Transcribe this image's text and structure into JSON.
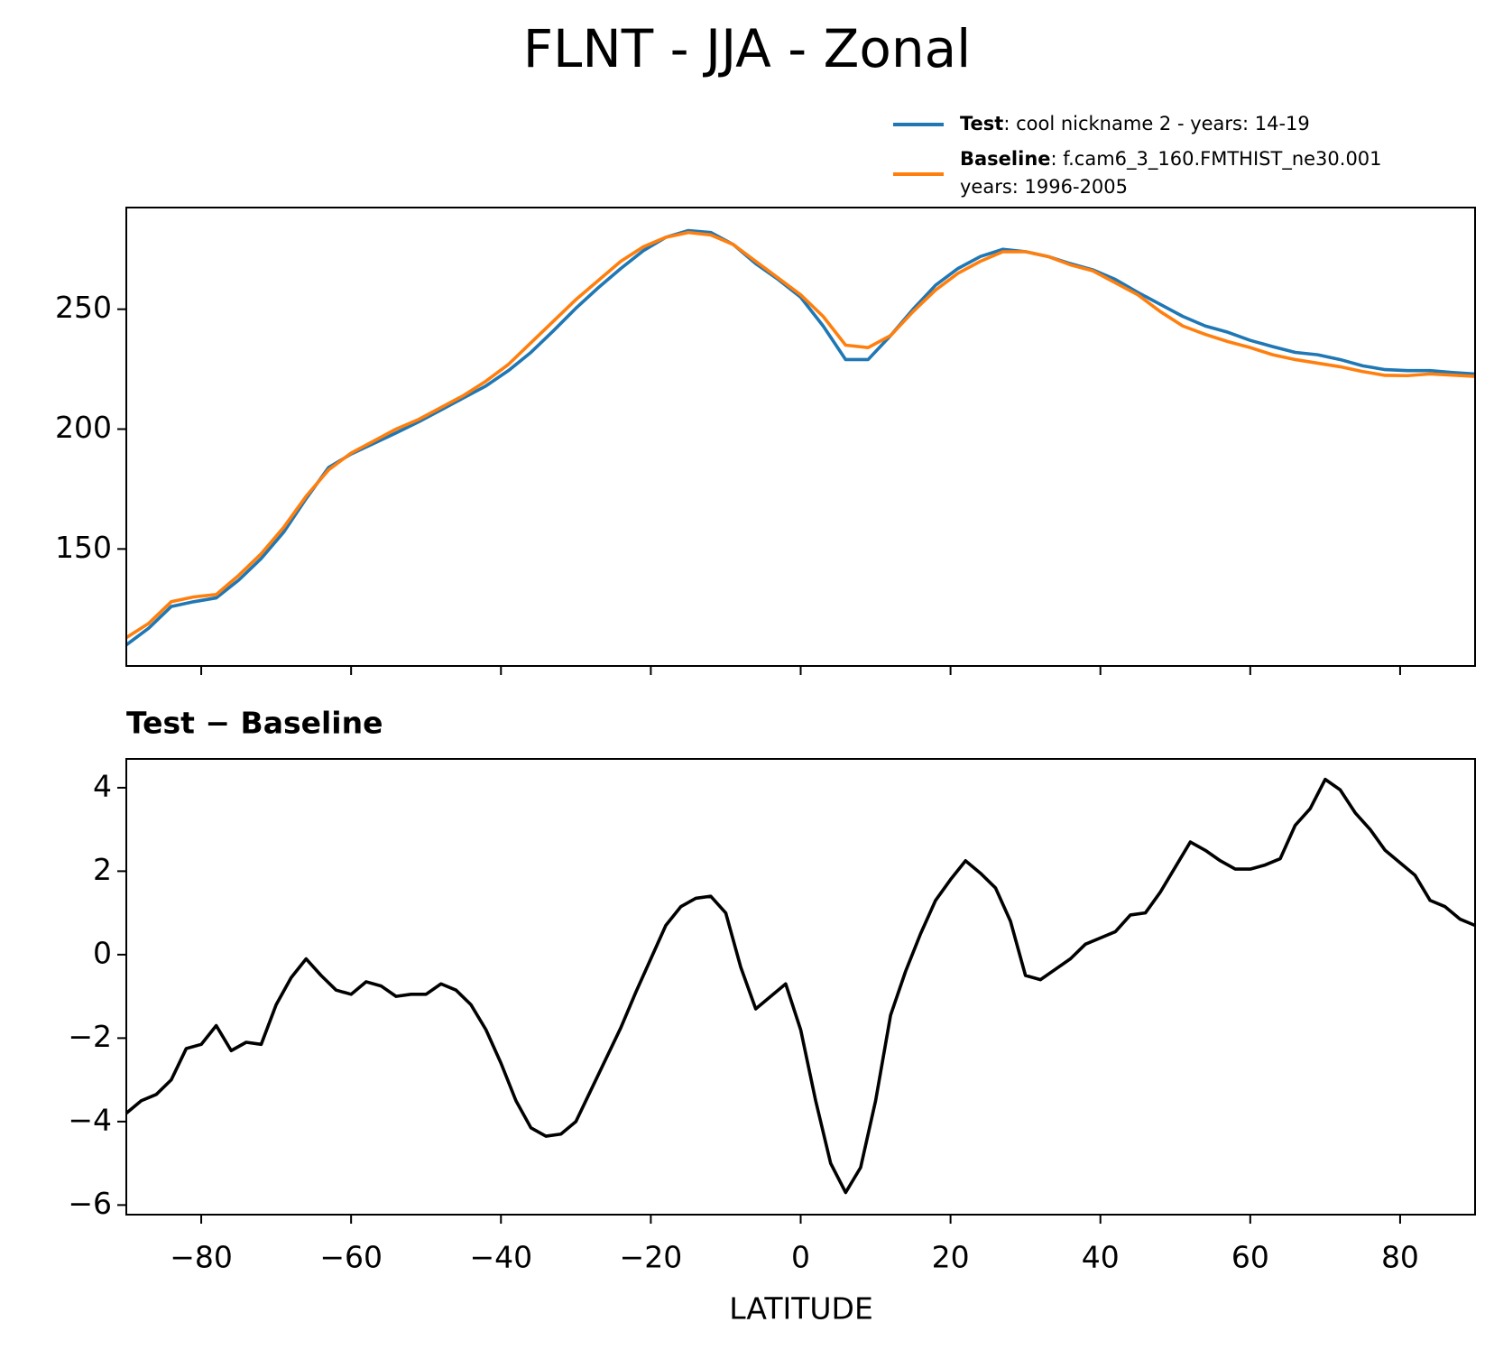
{
  "chart_data": [
    {
      "type": "line",
      "title": "FLNT - JJA - Zonal",
      "x": [
        -90,
        -87,
        -84,
        -81,
        -78,
        -75,
        -72,
        -69,
        -66,
        -63,
        -60,
        -57,
        -54,
        -51,
        -48,
        -45,
        -42,
        -39,
        -36,
        -33,
        -30,
        -27,
        -24,
        -21,
        -18,
        -15,
        -12,
        -9,
        -6,
        -3,
        0,
        3,
        6,
        9,
        12,
        15,
        18,
        21,
        24,
        27,
        30,
        33,
        36,
        39,
        42,
        45,
        48,
        51,
        54,
        57,
        60,
        63,
        66,
        69,
        72,
        75,
        78,
        81,
        84,
        87,
        90
      ],
      "series": [
        {
          "name": "Test",
          "description": ": cool nickname 2 - years: 14-19",
          "color": "#1f77b4",
          "values": [
            110,
            117,
            126,
            128,
            129.6,
            137,
            146,
            157,
            171,
            184,
            189.6,
            194,
            198.4,
            203,
            208,
            213,
            218,
            224.4,
            232,
            241,
            250.4,
            259,
            267,
            274.4,
            280,
            282.8,
            282,
            277,
            269,
            262.4,
            255,
            243,
            229,
            229,
            239,
            250,
            260,
            267,
            272,
            275,
            274,
            272,
            269,
            266.4,
            262.4,
            257,
            252,
            247,
            243,
            240.4,
            237,
            234.4,
            232,
            231,
            229,
            226.4,
            224.8,
            224.4,
            224.4,
            223.6,
            223
          ]
        },
        {
          "name": "Baseline",
          "description": ": f.cam6_3_160.FMTHIST_ne30.001",
          "description_line2": "years: 1996-2005",
          "color": "#ff7f0e",
          "values": [
            113,
            119,
            128,
            130,
            131,
            139,
            148,
            159,
            172,
            183,
            190,
            195,
            200,
            204,
            209,
            214,
            220,
            227,
            236,
            245,
            254,
            262,
            270,
            276,
            280,
            282,
            281,
            277,
            270,
            263,
            256,
            247,
            235,
            234,
            239,
            249,
            258,
            265,
            270,
            274,
            274,
            272,
            268.5,
            266,
            261,
            256,
            249,
            243,
            239.5,
            236.5,
            234,
            231,
            229,
            227.5,
            226,
            224,
            222.4,
            222.3,
            223,
            222.5,
            222
          ]
        }
      ],
      "xlim": [
        -90,
        90
      ],
      "ylim": [
        101.2,
        292.4
      ],
      "yticks": [
        150,
        200,
        250
      ]
    },
    {
      "type": "line",
      "title": "Test − Baseline",
      "xlabel": "LATITUDE",
      "x": [
        -90,
        -88,
        -86,
        -84,
        -82,
        -80,
        -78,
        -76,
        -74,
        -72,
        -70,
        -68,
        -66,
        -64,
        -62,
        -60,
        -58,
        -56,
        -54,
        -52,
        -50,
        -48,
        -46,
        -44,
        -42,
        -40,
        -38,
        -36,
        -34,
        -32,
        -30,
        -28,
        -26,
        -24,
        -22,
        -20,
        -18,
        -16,
        -14,
        -12,
        -10,
        -8,
        -6,
        -4,
        -2,
        0,
        2,
        4,
        6,
        8,
        10,
        12,
        14,
        16,
        18,
        20,
        22,
        24,
        26,
        28,
        30,
        32,
        34,
        36,
        38,
        40,
        42,
        44,
        46,
        48,
        50,
        52,
        54,
        56,
        58,
        60,
        62,
        64,
        66,
        68,
        70,
        72,
        74,
        76,
        78,
        80,
        82,
        84,
        86,
        88,
        90
      ],
      "series": [
        {
          "color": "#000000",
          "values": [
            -3.8,
            -3.5,
            -3.35,
            -3.0,
            -2.25,
            -2.15,
            -1.7,
            -2.3,
            -2.1,
            -2.15,
            -1.2,
            -0.55,
            -0.1,
            -0.5,
            -0.85,
            -0.95,
            -0.65,
            -0.75,
            -1.0,
            -0.95,
            -0.95,
            -0.7,
            -0.85,
            -1.2,
            -1.8,
            -2.6,
            -3.5,
            -4.15,
            -4.35,
            -4.3,
            -4.0,
            -3.25,
            -2.5,
            -1.75,
            -0.9,
            -0.1,
            0.7,
            1.15,
            1.35,
            1.4,
            1.0,
            -0.3,
            -1.3,
            -1.0,
            -0.7,
            -1.8,
            -3.5,
            -5.0,
            -5.7,
            -5.1,
            -3.5,
            -1.45,
            -0.4,
            0.5,
            1.3,
            1.8,
            2.25,
            1.95,
            1.6,
            0.8,
            -0.5,
            -0.6,
            -0.35,
            -0.1,
            0.25,
            0.4,
            0.55,
            0.95,
            1.0,
            1.5,
            2.1,
            2.7,
            2.5,
            2.25,
            2.05,
            2.05,
            2.15,
            2.3,
            3.1,
            3.5,
            4.2,
            3.95,
            3.4,
            3.0,
            2.5,
            2.2,
            1.9,
            1.3,
            1.15,
            0.85,
            0.7
          ]
        }
      ],
      "xlim": [
        -90,
        90
      ],
      "ylim": [
        -6.23,
        4.69
      ],
      "xticks": [
        {
          "value": -80,
          "label": "−80"
        },
        {
          "value": -60,
          "label": "−60"
        },
        {
          "value": -40,
          "label": "−40"
        },
        {
          "value": -20,
          "label": "−20"
        },
        0,
        20,
        40,
        60,
        80
      ],
      "yticks": [
        {
          "value": -6,
          "label": "−6"
        },
        {
          "value": -4,
          "label": "−4"
        },
        {
          "value": -2,
          "label": "−2"
        },
        0,
        2,
        4
      ]
    }
  ]
}
